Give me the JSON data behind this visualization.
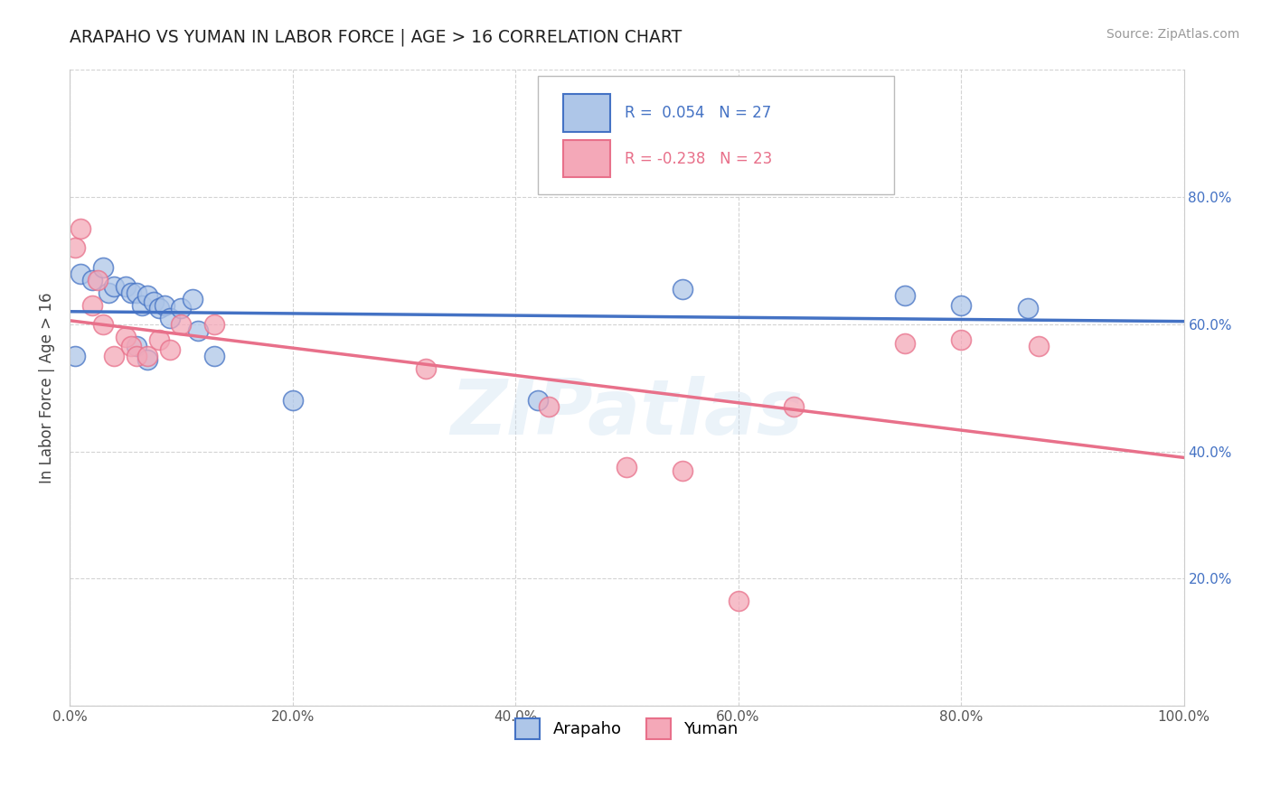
{
  "title": "ARAPAHO VS YUMAN IN LABOR FORCE | AGE > 16 CORRELATION CHART",
  "source_text": "Source: ZipAtlas.com",
  "ylabel": "In Labor Force | Age > 16",
  "arapaho_r": 0.054,
  "arapaho_n": 27,
  "yuman_r": -0.238,
  "yuman_n": 23,
  "xlim": [
    0.0,
    1.0
  ],
  "ylim": [
    0.0,
    1.0
  ],
  "arapaho_color": "#aec6e8",
  "yuman_color": "#f4a8b8",
  "arapaho_line_color": "#4472c4",
  "yuman_line_color": "#e8708a",
  "background_color": "#ffffff",
  "grid_color": "#c8c8c8",
  "watermark": "ZIPatlas",
  "arapaho_x": [
    0.005,
    0.01,
    0.02,
    0.03,
    0.035,
    0.04,
    0.05,
    0.055,
    0.06,
    0.065,
    0.07,
    0.075,
    0.08,
    0.085,
    0.09,
    0.1,
    0.11,
    0.115,
    0.13,
    0.2,
    0.42,
    0.55,
    0.75,
    0.8,
    0.86,
    0.06,
    0.07
  ],
  "arapaho_y": [
    0.55,
    0.68,
    0.67,
    0.69,
    0.65,
    0.66,
    0.66,
    0.65,
    0.65,
    0.63,
    0.645,
    0.635,
    0.625,
    0.63,
    0.61,
    0.625,
    0.64,
    0.59,
    0.55,
    0.48,
    0.48,
    0.655,
    0.645,
    0.63,
    0.625,
    0.565,
    0.545
  ],
  "yuman_x": [
    0.005,
    0.01,
    0.02,
    0.025,
    0.03,
    0.04,
    0.05,
    0.055,
    0.06,
    0.07,
    0.08,
    0.09,
    0.1,
    0.13,
    0.32,
    0.43,
    0.5,
    0.65,
    0.75,
    0.8,
    0.87,
    0.55,
    0.6
  ],
  "yuman_y": [
    0.72,
    0.75,
    0.63,
    0.67,
    0.6,
    0.55,
    0.58,
    0.565,
    0.55,
    0.55,
    0.575,
    0.56,
    0.6,
    0.6,
    0.53,
    0.47,
    0.375,
    0.47,
    0.57,
    0.575,
    0.565,
    0.37,
    0.165
  ]
}
